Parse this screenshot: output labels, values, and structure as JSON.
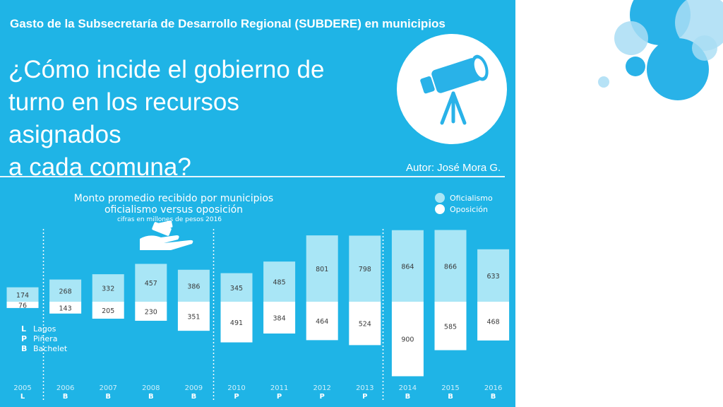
{
  "header": {
    "kicker": "Gasto de la Subsecretaría de Desarrollo Regional (SUBDERE)  en municipios",
    "headline_lines": [
      "¿Cómo incide el gobierno de",
      "turno en los recursos asignados",
      "a cada comuna?"
    ],
    "author": "Autor: José Mora G."
  },
  "icons": {
    "telescope": "telescope-icon",
    "money_hand": "money-hand-icon"
  },
  "colors": {
    "panel": "#1fb4e6",
    "oficialismo": "#a9e6f6",
    "oposicion": "#ffffff",
    "deco_dark": "#29b2e8",
    "deco_light": "#a9ddf4"
  },
  "chart_data": {
    "type": "bar",
    "title": "Monto promedio recibido por municipios",
    "subtitle": "oficialismo versus oposición",
    "note": "cifras en millones de pesos 2016",
    "categories": [
      "2005",
      "2006",
      "2007",
      "2008",
      "2009",
      "2010",
      "2011",
      "2012",
      "2013",
      "2014",
      "2015",
      "2016"
    ],
    "government": [
      "L",
      "B",
      "B",
      "B",
      "B",
      "P",
      "P",
      "P",
      "P",
      "B",
      "B",
      "B"
    ],
    "series": [
      {
        "name": "Oficialismo",
        "values": [
          174,
          268,
          332,
          457,
          386,
          345,
          485,
          801,
          798,
          864,
          866,
          633
        ]
      },
      {
        "name": "Oposición",
        "values": [
          76,
          143,
          205,
          230,
          351,
          491,
          384,
          464,
          524,
          900,
          585,
          468
        ]
      }
    ],
    "legend_position": "top-right",
    "government_key": [
      {
        "code": "L",
        "name": "Lagos"
      },
      {
        "code": "P",
        "name": "Piñera"
      },
      {
        "code": "B",
        "name": "Bachelet"
      }
    ]
  }
}
